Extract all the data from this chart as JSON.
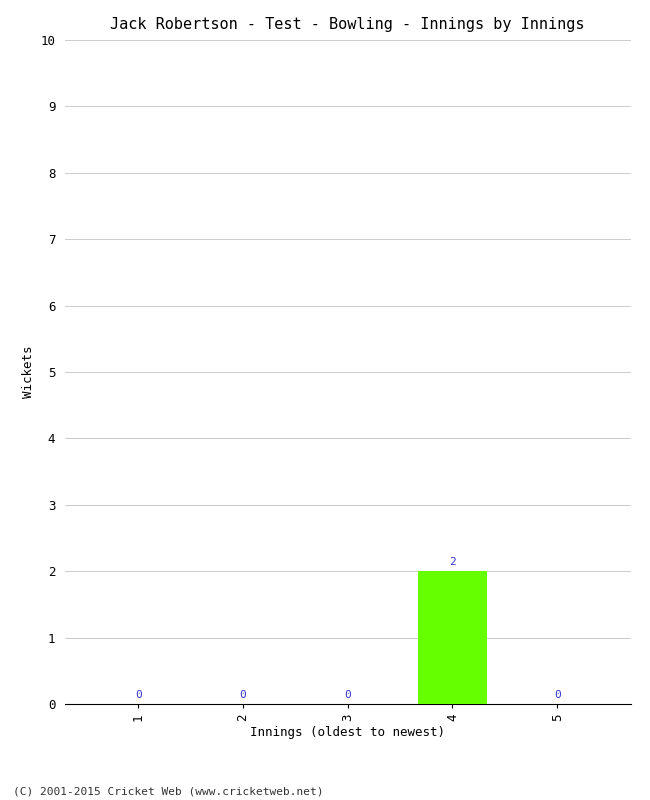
{
  "title": "Jack Robertson - Test - Bowling - Innings by Innings",
  "xlabel": "Innings (oldest to newest)",
  "ylabel": "Wickets",
  "categories": [
    1,
    2,
    3,
    4,
    5
  ],
  "values": [
    0,
    0,
    0,
    2,
    0
  ],
  "bar_color": "#66ff00",
  "ylim": [
    0,
    10
  ],
  "yticks": [
    0,
    1,
    2,
    3,
    4,
    5,
    6,
    7,
    8,
    9,
    10
  ],
  "background_color": "#ffffff",
  "grid_color": "#cccccc",
  "title_fontsize": 11,
  "label_fontsize": 9,
  "tick_fontsize": 9,
  "annotation_fontsize": 8,
  "annotation_color": "#3333cc",
  "footer": "(C) 2001-2015 Cricket Web (www.cricketweb.net)",
  "footer_fontsize": 8,
  "bar_width": 0.65
}
